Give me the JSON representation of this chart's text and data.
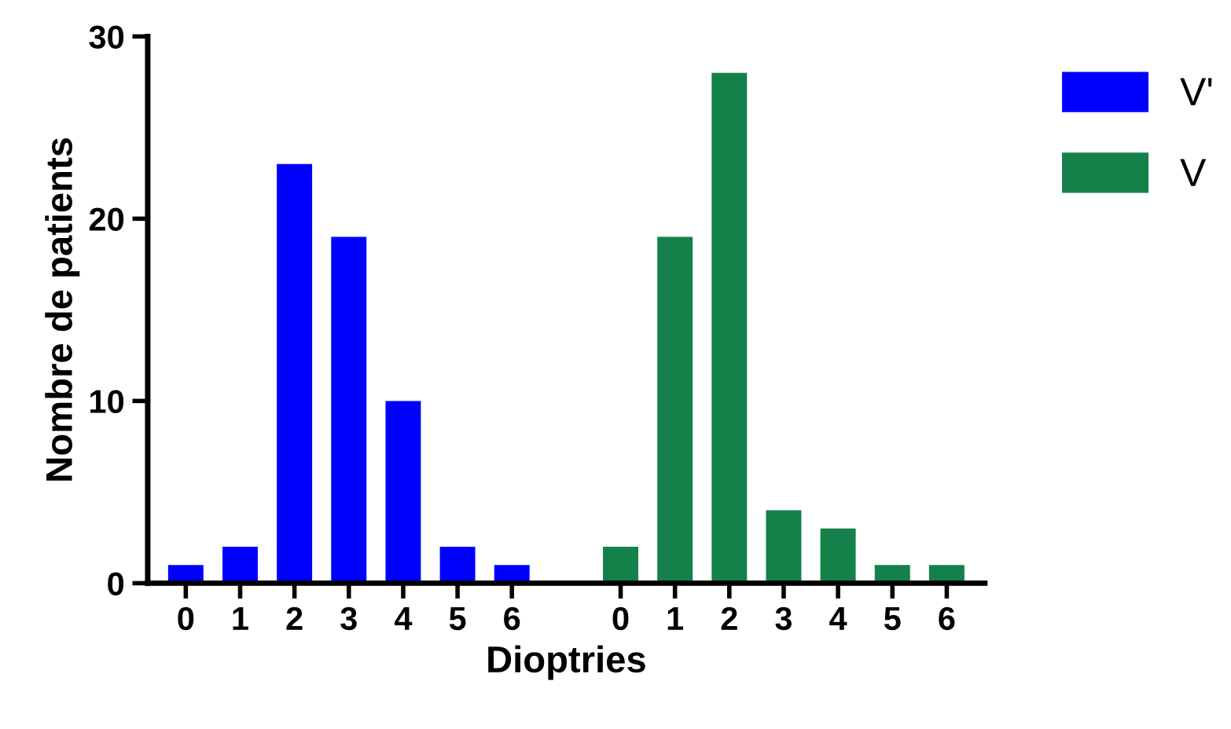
{
  "chart_data": {
    "type": "bar",
    "xlabel": "Dioptries",
    "ylabel": "Nombre de patients",
    "categories": [
      "0",
      "1",
      "2",
      "3",
      "4",
      "5",
      "6",
      null,
      "0",
      "1",
      "2",
      "3",
      "4",
      "5",
      "6"
    ],
    "series": [
      {
        "name": "V'",
        "color": "#0000ff",
        "values": [
          1,
          2,
          23,
          19,
          10,
          2,
          1,
          null,
          null,
          null,
          null,
          null,
          null,
          null,
          null
        ]
      },
      {
        "name": "V",
        "color": "#14804a",
        "values": [
          null,
          null,
          null,
          null,
          null,
          null,
          null,
          null,
          2,
          19,
          28,
          4,
          3,
          1,
          1
        ]
      }
    ],
    "ylim": [
      0,
      30
    ],
    "yticks": [
      0,
      10,
      20,
      30
    ],
    "grid": false,
    "legend": "top right"
  }
}
